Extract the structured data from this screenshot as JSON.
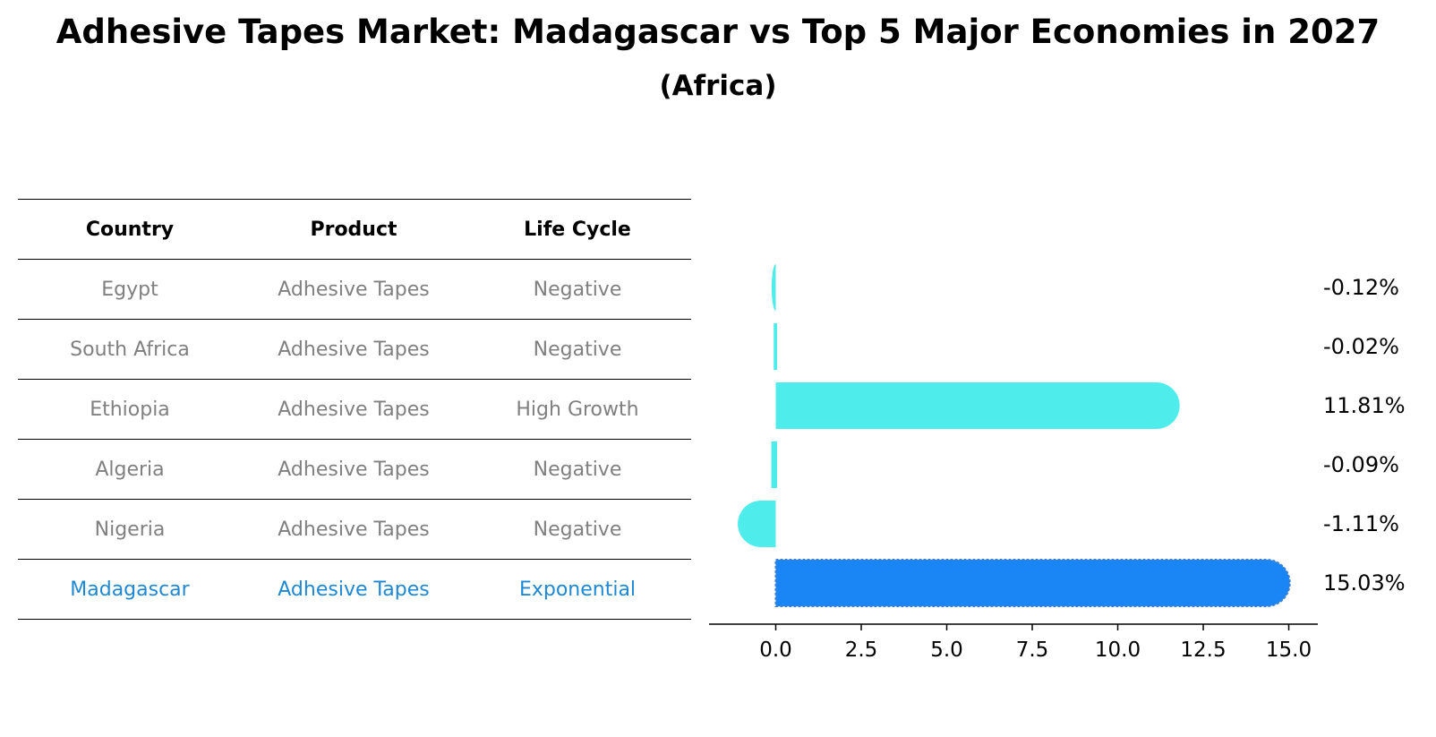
{
  "title": "Adhesive Tapes Market: Madagascar vs Top 5 Major Economies in 2027",
  "subtitle": "(Africa)",
  "table": {
    "headers": [
      "Country",
      "Product",
      "Life Cycle"
    ],
    "rows": [
      [
        "Egypt",
        "Adhesive Tapes",
        "Negative"
      ],
      [
        "South Africa",
        "Adhesive Tapes",
        "Negative"
      ],
      [
        "Ethiopia",
        "Adhesive Tapes",
        "High Growth"
      ],
      [
        "Algeria",
        "Adhesive Tapes",
        "Negative"
      ],
      [
        "Nigeria",
        "Adhesive Tapes",
        "Negative"
      ],
      [
        "Madagascar",
        "Adhesive Tapes",
        "Exponential"
      ]
    ]
  },
  "chart_data": {
    "type": "bar",
    "orientation": "horizontal",
    "categories": [
      "Egypt",
      "South Africa",
      "Ethiopia",
      "Algeria",
      "Nigeria",
      "Madagascar"
    ],
    "values": [
      -0.12,
      -0.02,
      11.81,
      -0.09,
      -1.11,
      15.03
    ],
    "value_labels": [
      "-0.12%",
      "-0.02%",
      "11.81%",
      "-0.09%",
      "-1.11%",
      "15.03%"
    ],
    "highlight": "Madagascar",
    "xlim": [
      -1.95,
      15.85
    ],
    "xticks": [
      0.0,
      2.5,
      5.0,
      7.5,
      10.0,
      12.5,
      15.0
    ],
    "xtick_labels": [
      "0.0",
      "2.5",
      "5.0",
      "7.5",
      "10.0",
      "12.5",
      "15.0"
    ],
    "colors": {
      "default": "#4eeceb",
      "highlight": "#1a86f5"
    }
  }
}
